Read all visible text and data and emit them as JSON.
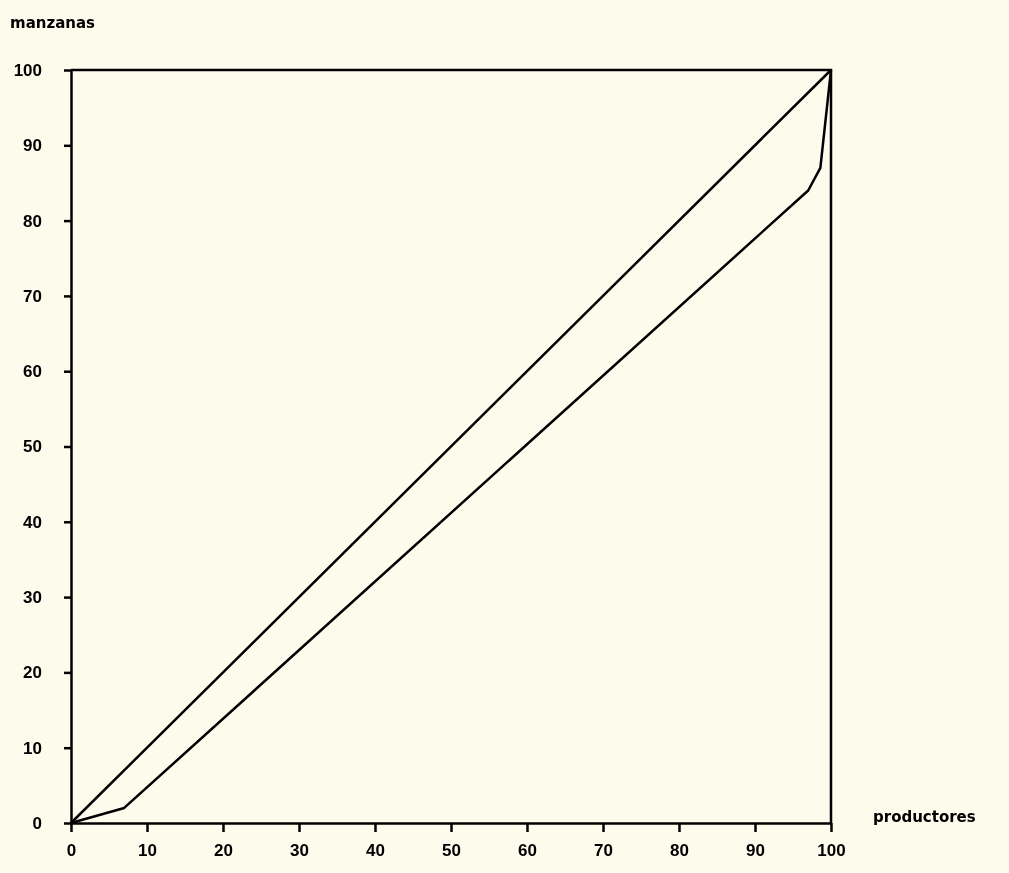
{
  "chart_data": {
    "type": "line",
    "xlabel": "productores",
    "ylabel": "manzanas",
    "xlim": [
      0,
      100
    ],
    "ylim": [
      0,
      100
    ],
    "xticks": [
      0,
      10,
      20,
      30,
      40,
      50,
      60,
      70,
      80,
      90,
      100
    ],
    "yticks": [
      0,
      10,
      20,
      30,
      40,
      50,
      60,
      70,
      80,
      90,
      100
    ],
    "grid": false,
    "marker": "none",
    "line_style": "solid",
    "series": [
      {
        "color": "#000000",
        "x": [
          0,
          100
        ],
        "values": [
          0,
          100
        ]
      },
      {
        "color": "#000000",
        "x": [
          0,
          7,
          97,
          98.6,
          100
        ],
        "values": [
          0,
          2,
          84,
          87,
          100
        ]
      }
    ]
  }
}
